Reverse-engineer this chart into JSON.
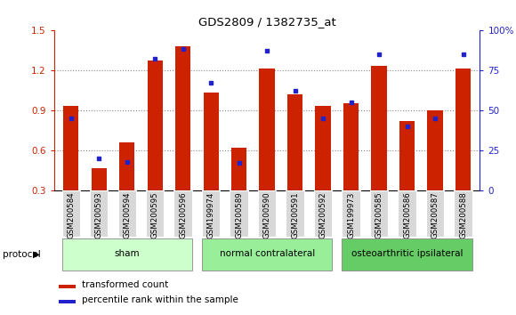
{
  "title": "GDS2809 / 1382735_at",
  "samples": [
    "GSM200584",
    "GSM200593",
    "GSM200594",
    "GSM200595",
    "GSM200596",
    "GSM199974",
    "GSM200589",
    "GSM200590",
    "GSM200591",
    "GSM200592",
    "GSM199973",
    "GSM200585",
    "GSM200586",
    "GSM200587",
    "GSM200588"
  ],
  "red_values": [
    0.93,
    0.47,
    0.66,
    1.27,
    1.38,
    1.03,
    0.62,
    1.21,
    1.02,
    0.93,
    0.95,
    1.23,
    0.82,
    0.9,
    1.21
  ],
  "blue_values": [
    45,
    20,
    18,
    82,
    88,
    67,
    17,
    87,
    62,
    45,
    55,
    85,
    40,
    45,
    85
  ],
  "groups": [
    {
      "label": "sham",
      "start": 0,
      "end": 5,
      "color": "#ccffcc"
    },
    {
      "label": "normal contralateral",
      "start": 5,
      "end": 10,
      "color": "#99ee99"
    },
    {
      "label": "osteoarthritic ipsilateral",
      "start": 10,
      "end": 15,
      "color": "#66cc66"
    }
  ],
  "ylim_left": [
    0.3,
    1.5
  ],
  "ylim_right": [
    0,
    100
  ],
  "yticks_left": [
    0.3,
    0.6,
    0.9,
    1.2,
    1.5
  ],
  "yticks_right": [
    0,
    25,
    50,
    75,
    100
  ],
  "bar_color": "#cc2200",
  "marker_color": "#2222cc",
  "bar_width": 0.55,
  "left_axis_color": "#cc2200",
  "right_axis_color": "#2222cc",
  "grid_color": "#888888",
  "bg_color": "#ffffff",
  "protocol_label": "protocol",
  "legend_items": [
    "transformed count",
    "percentile rank within the sample"
  ],
  "n_samples": 15
}
